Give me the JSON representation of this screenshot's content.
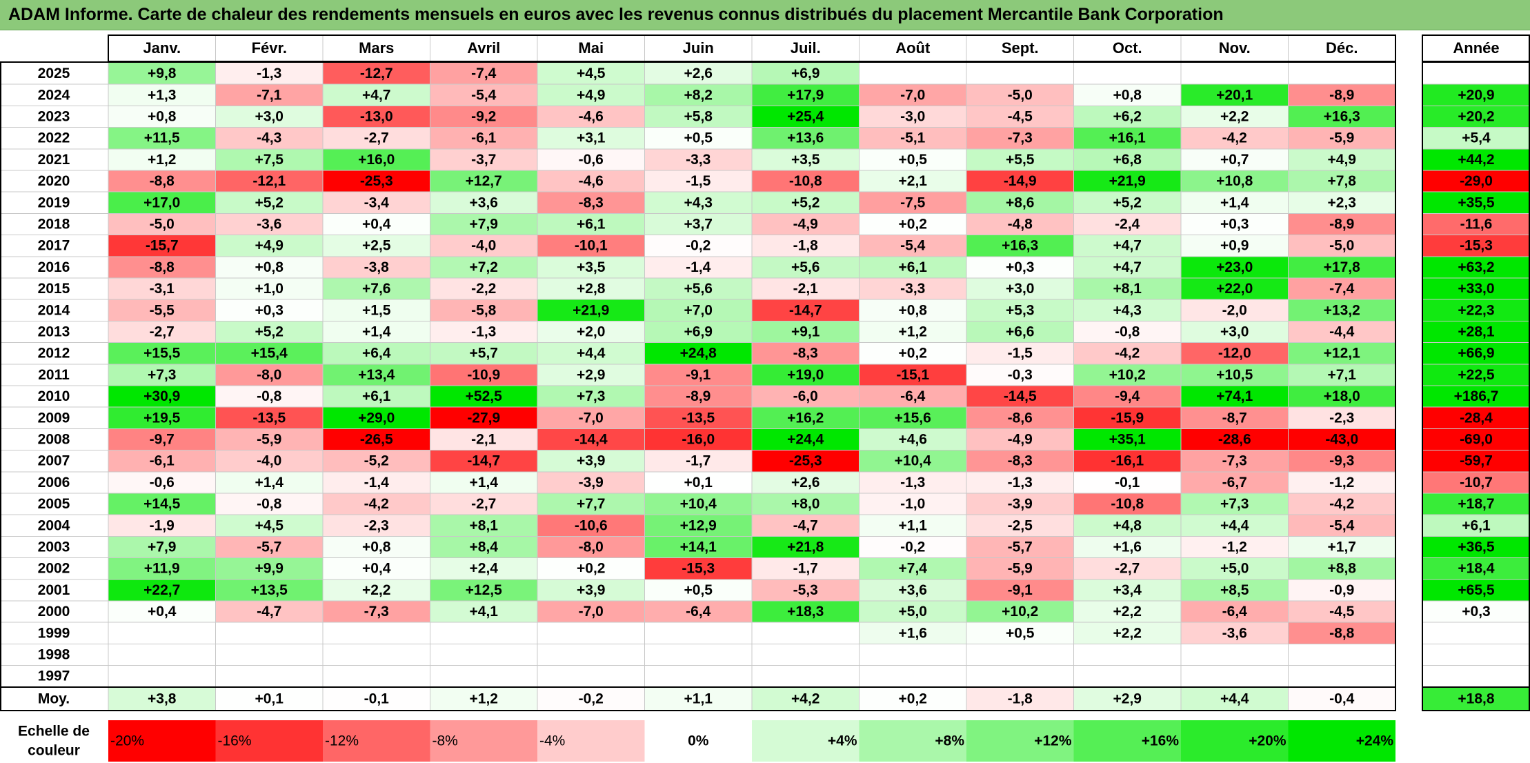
{
  "title": "ADAM Informe. Carte de chaleur des rendements mensuels en euros avec les revenus connus distribués du placement Mercantile Bank Corporation",
  "chart_data": {
    "type": "heatmap",
    "title": "ADAM Informe. Carte de chaleur des rendements mensuels en euros avec les revenus connus distribués du placement Mercantile Bank Corporation",
    "columns": [
      "Janv.",
      "Févr.",
      "Mars",
      "Avril",
      "Mai",
      "Juin",
      "Juil.",
      "Août",
      "Sept.",
      "Oct.",
      "Nov.",
      "Déc."
    ],
    "annual_label": "Année",
    "avg_label": "Moy.",
    "rows": [
      {
        "year": "2025",
        "months": [
          "+9,8",
          "-1,3",
          "-12,7",
          "-7,4",
          "+4,5",
          "+2,6",
          "+6,9",
          "",
          "",
          "",
          "",
          ""
        ],
        "annual": ""
      },
      {
        "year": "2024",
        "months": [
          "+1,3",
          "-7,1",
          "+4,7",
          "-5,4",
          "+4,9",
          "+8,2",
          "+17,9",
          "-7,0",
          "-5,0",
          "+0,8",
          "+20,1",
          "-8,9"
        ],
        "annual": "+20,9"
      },
      {
        "year": "2023",
        "months": [
          "+0,8",
          "+3,0",
          "-13,0",
          "-9,2",
          "-4,6",
          "+5,8",
          "+25,4",
          "-3,0",
          "-4,5",
          "+6,2",
          "+2,2",
          "+16,3"
        ],
        "annual": "+20,2"
      },
      {
        "year": "2022",
        "months": [
          "+11,5",
          "-4,3",
          "-2,7",
          "-6,1",
          "+3,1",
          "+0,5",
          "+13,6",
          "-5,1",
          "-7,3",
          "+16,1",
          "-4,2",
          "-5,9"
        ],
        "annual": "+5,4"
      },
      {
        "year": "2021",
        "months": [
          "+1,2",
          "+7,5",
          "+16,0",
          "-3,7",
          "-0,6",
          "-3,3",
          "+3,5",
          "+0,5",
          "+5,5",
          "+6,8",
          "+0,7",
          "+4,9"
        ],
        "annual": "+44,2"
      },
      {
        "year": "2020",
        "months": [
          "-8,8",
          "-12,1",
          "-25,3",
          "+12,7",
          "-4,6",
          "-1,5",
          "-10,8",
          "+2,1",
          "-14,9",
          "+21,9",
          "+10,8",
          "+7,8"
        ],
        "annual": "-29,0"
      },
      {
        "year": "2019",
        "months": [
          "+17,0",
          "+5,2",
          "-3,4",
          "+3,6",
          "-8,3",
          "+4,3",
          "+5,2",
          "-7,5",
          "+8,6",
          "+5,2",
          "+1,4",
          "+2,3"
        ],
        "annual": "+35,5"
      },
      {
        "year": "2018",
        "months": [
          "-5,0",
          "-3,6",
          "+0,4",
          "+7,9",
          "+6,1",
          "+3,7",
          "-4,9",
          "+0,2",
          "-4,8",
          "-2,4",
          "+0,3",
          "-8,9"
        ],
        "annual": "-11,6"
      },
      {
        "year": "2017",
        "months": [
          "-15,7",
          "+4,9",
          "+2,5",
          "-4,0",
          "-10,1",
          "-0,2",
          "-1,8",
          "-5,4",
          "+16,3",
          "+4,7",
          "+0,9",
          "-5,0"
        ],
        "annual": "-15,3"
      },
      {
        "year": "2016",
        "months": [
          "-8,8",
          "+0,8",
          "-3,8",
          "+7,2",
          "+3,5",
          "-1,4",
          "+5,6",
          "+6,1",
          "+0,3",
          "+4,7",
          "+23,0",
          "+17,8"
        ],
        "annual": "+63,2"
      },
      {
        "year": "2015",
        "months": [
          "-3,1",
          "+1,0",
          "+7,6",
          "-2,2",
          "+2,8",
          "+5,6",
          "-2,1",
          "-3,3",
          "+3,0",
          "+8,1",
          "+22,0",
          "-7,4"
        ],
        "annual": "+33,0"
      },
      {
        "year": "2014",
        "months": [
          "-5,5",
          "+0,3",
          "+1,5",
          "-5,8",
          "+21,9",
          "+7,0",
          "-14,7",
          "+0,8",
          "+5,3",
          "+4,3",
          "-2,0",
          "+13,2"
        ],
        "annual": "+22,3"
      },
      {
        "year": "2013",
        "months": [
          "-2,7",
          "+5,2",
          "+1,4",
          "-1,3",
          "+2,0",
          "+6,9",
          "+9,1",
          "+1,2",
          "+6,6",
          "-0,8",
          "+3,0",
          "-4,4"
        ],
        "annual": "+28,1"
      },
      {
        "year": "2012",
        "months": [
          "+15,5",
          "+15,4",
          "+6,4",
          "+5,7",
          "+4,4",
          "+24,8",
          "-8,3",
          "+0,2",
          "-1,5",
          "-4,2",
          "-12,0",
          "+12,1"
        ],
        "annual": "+66,9"
      },
      {
        "year": "2011",
        "months": [
          "+7,3",
          "-8,0",
          "+13,4",
          "-10,9",
          "+2,9",
          "-9,1",
          "+19,0",
          "-15,1",
          "-0,3",
          "+10,2",
          "+10,5",
          "+7,1"
        ],
        "annual": "+22,5"
      },
      {
        "year": "2010",
        "months": [
          "+30,9",
          "-0,8",
          "+6,1",
          "+52,5",
          "+7,3",
          "-8,9",
          "-6,0",
          "-6,4",
          "-14,5",
          "-9,4",
          "+74,1",
          "+18,0"
        ],
        "annual": "+186,7"
      },
      {
        "year": "2009",
        "months": [
          "+19,5",
          "-13,5",
          "+29,0",
          "-27,9",
          "-7,0",
          "-13,5",
          "+16,2",
          "+15,6",
          "-8,6",
          "-15,9",
          "-8,7",
          "-2,3"
        ],
        "annual": "-28,4"
      },
      {
        "year": "2008",
        "months": [
          "-9,7",
          "-5,9",
          "-26,5",
          "-2,1",
          "-14,4",
          "-16,0",
          "+24,4",
          "+4,6",
          "-4,9",
          "+35,1",
          "-28,6",
          "-43,0"
        ],
        "annual": "-69,0"
      },
      {
        "year": "2007",
        "months": [
          "-6,1",
          "-4,0",
          "-5,2",
          "-14,7",
          "+3,9",
          "-1,7",
          "-25,3",
          "+10,4",
          "-8,3",
          "-16,1",
          "-7,3",
          "-9,3"
        ],
        "annual": "-59,7"
      },
      {
        "year": "2006",
        "months": [
          "-0,6",
          "+1,4",
          "-1,4",
          "+1,4",
          "-3,9",
          "+0,1",
          "+2,6",
          "-1,3",
          "-1,3",
          "-0,1",
          "-6,7",
          "-1,2"
        ],
        "annual": "-10,7"
      },
      {
        "year": "2005",
        "months": [
          "+14,5",
          "-0,8",
          "-4,2",
          "-2,7",
          "+7,7",
          "+10,4",
          "+8,0",
          "-1,0",
          "-3,9",
          "-10,8",
          "+7,3",
          "-4,2"
        ],
        "annual": "+18,7"
      },
      {
        "year": "2004",
        "months": [
          "-1,9",
          "+4,5",
          "-2,3",
          "+8,1",
          "-10,6",
          "+12,9",
          "-4,7",
          "+1,1",
          "-2,5",
          "+4,8",
          "+4,4",
          "-5,4"
        ],
        "annual": "+6,1"
      },
      {
        "year": "2003",
        "months": [
          "+7,9",
          "-5,7",
          "+0,8",
          "+8,4",
          "-8,0",
          "+14,1",
          "+21,8",
          "-0,2",
          "-5,7",
          "+1,6",
          "-1,2",
          "+1,7"
        ],
        "annual": "+36,5"
      },
      {
        "year": "2002",
        "months": [
          "+11,9",
          "+9,9",
          "+0,4",
          "+2,4",
          "+0,2",
          "-15,3",
          "-1,7",
          "+7,4",
          "-5,9",
          "-2,7",
          "+5,0",
          "+8,8"
        ],
        "annual": "+18,4"
      },
      {
        "year": "2001",
        "months": [
          "+22,7",
          "+13,5",
          "+2,2",
          "+12,5",
          "+3,9",
          "+0,5",
          "-5,3",
          "+3,6",
          "-9,1",
          "+3,4",
          "+8,5",
          "-0,9"
        ],
        "annual": "+65,5"
      },
      {
        "year": "2000",
        "months": [
          "+0,4",
          "-4,7",
          "-7,3",
          "+4,1",
          "-7,0",
          "-6,4",
          "+18,3",
          "+5,0",
          "+10,2",
          "+2,2",
          "-6,4",
          "-4,5"
        ],
        "annual": "+0,3"
      },
      {
        "year": "1999",
        "months": [
          "",
          "",
          "",
          "",
          "",
          "",
          "",
          "+1,6",
          "+0,5",
          "+2,2",
          "-3,6",
          "-8,8"
        ],
        "annual": ""
      },
      {
        "year": "1998",
        "months": [
          "",
          "",
          "",
          "",
          "",
          "",
          "",
          "",
          "",
          "",
          "",
          ""
        ],
        "annual": ""
      },
      {
        "year": "1997",
        "months": [
          "",
          "",
          "",
          "",
          "",
          "",
          "",
          "",
          "",
          "",
          "",
          ""
        ],
        "annual": ""
      }
    ],
    "average": {
      "months": [
        "+3,8",
        "+0,1",
        "-0,1",
        "+1,2",
        "-0,2",
        "+1,1",
        "+4,2",
        "+0,2",
        "-1,8",
        "+2,9",
        "+4,4",
        "-0,4"
      ],
      "annual": "+18,8"
    },
    "scale_label": [
      "Echelle de",
      "couleur"
    ],
    "scale": [
      {
        "label": "-20%",
        "value": -20,
        "color": "#ff0000"
      },
      {
        "label": "-16%",
        "value": -16,
        "color": "#ff3333"
      },
      {
        "label": "-12%",
        "value": -12,
        "color": "#ff6666"
      },
      {
        "label": "-8%",
        "value": -8,
        "color": "#ff9999"
      },
      {
        "label": "-4%",
        "value": -4,
        "color": "#ffcccc"
      },
      {
        "label": "0%",
        "value": 0,
        "color": "#ffffff"
      },
      {
        "label": "+4%",
        "value": 4,
        "color": "#d5fbd5"
      },
      {
        "label": "+8%",
        "value": 8,
        "color": "#aaf7aa"
      },
      {
        "label": "+12%",
        "value": 12,
        "color": "#80f380"
      },
      {
        "label": "+16%",
        "value": 16,
        "color": "#55ef55"
      },
      {
        "label": "+20%",
        "value": 20,
        "color": "#2beb2b"
      },
      {
        "label": "+24%",
        "value": 24,
        "color": "#00e700"
      }
    ]
  }
}
